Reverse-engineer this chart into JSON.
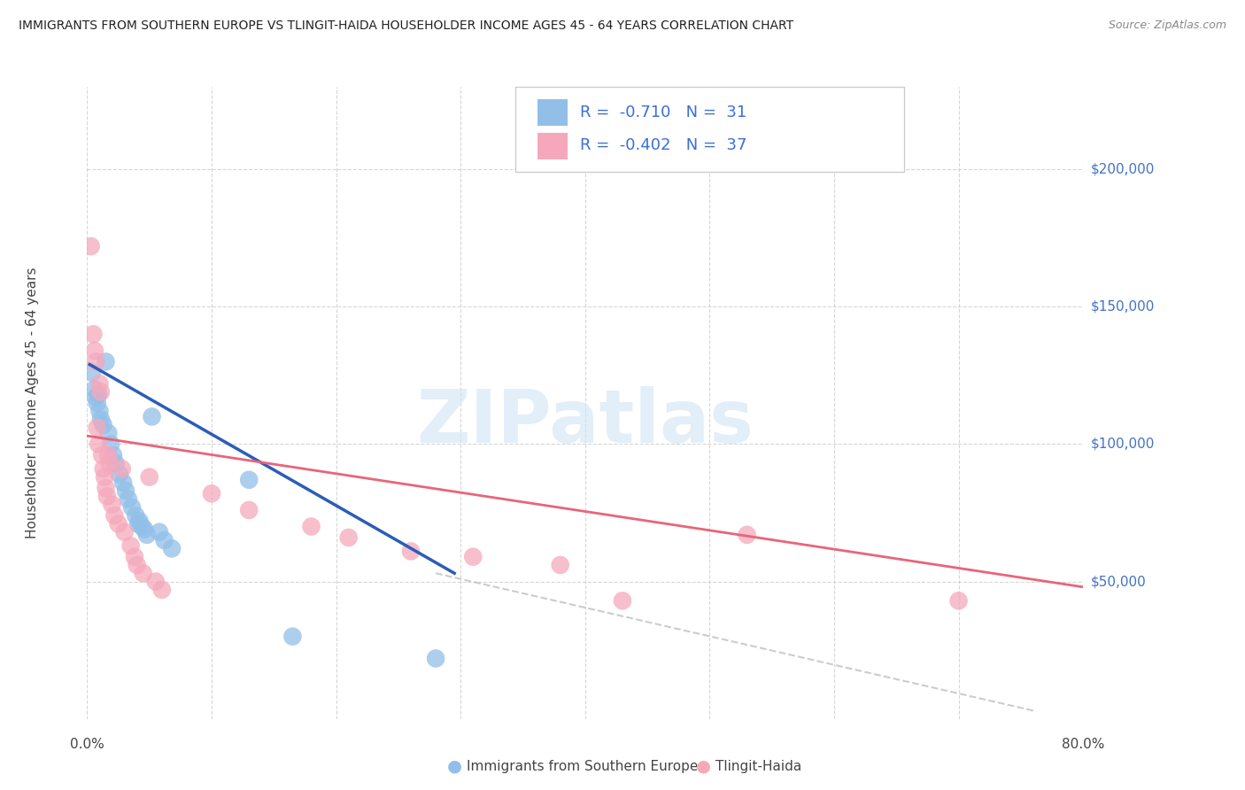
{
  "title": "IMMIGRANTS FROM SOUTHERN EUROPE VS TLINGIT-HAIDA HOUSEHOLDER INCOME AGES 45 - 64 YEARS CORRELATION CHART",
  "source": "Source: ZipAtlas.com",
  "ylabel": "Householder Income Ages 45 - 64 years",
  "ymin": 0,
  "ymax": 230000,
  "xmin": 0.0,
  "xmax": 0.8,
  "ytick_values": [
    50000,
    100000,
    150000,
    200000
  ],
  "ytick_labels": [
    "$50,000",
    "$100,000",
    "$150,000",
    "$200,000"
  ],
  "blue_color": "#92bfe8",
  "pink_color": "#f5a8bc",
  "blue_line_color": "#2b5db8",
  "pink_line_color": "#e8657a",
  "dashed_color": "#c0c0c0",
  "legend_text_color": "#3a6fd8",
  "watermark_color": "#d0e4f4",
  "blue_scatter": [
    [
      0.004,
      126000
    ],
    [
      0.006,
      120000
    ],
    [
      0.007,
      117000
    ],
    [
      0.008,
      115000
    ],
    [
      0.009,
      118000
    ],
    [
      0.01,
      112000
    ],
    [
      0.011,
      109000
    ],
    [
      0.013,
      107000
    ],
    [
      0.015,
      130000
    ],
    [
      0.017,
      104000
    ],
    [
      0.019,
      100000
    ],
    [
      0.021,
      96000
    ],
    [
      0.023,
      93000
    ],
    [
      0.026,
      89000
    ],
    [
      0.029,
      86000
    ],
    [
      0.031,
      83000
    ],
    [
      0.033,
      80000
    ],
    [
      0.036,
      77000
    ],
    [
      0.039,
      74000
    ],
    [
      0.041,
      71000
    ],
    [
      0.052,
      110000
    ],
    [
      0.058,
      68000
    ],
    [
      0.062,
      65000
    ],
    [
      0.068,
      62000
    ],
    [
      0.13,
      87000
    ],
    [
      0.042,
      72000
    ],
    [
      0.044,
      70000
    ],
    [
      0.046,
      69000
    ],
    [
      0.048,
      67000
    ],
    [
      0.165,
      30000
    ],
    [
      0.28,
      22000
    ]
  ],
  "pink_scatter": [
    [
      0.003,
      172000
    ],
    [
      0.005,
      140000
    ],
    [
      0.006,
      134000
    ],
    [
      0.007,
      130000
    ],
    [
      0.008,
      106000
    ],
    [
      0.009,
      100000
    ],
    [
      0.01,
      122000
    ],
    [
      0.011,
      119000
    ],
    [
      0.012,
      96000
    ],
    [
      0.013,
      91000
    ],
    [
      0.014,
      88000
    ],
    [
      0.015,
      84000
    ],
    [
      0.016,
      81000
    ],
    [
      0.017,
      96000
    ],
    [
      0.018,
      93000
    ],
    [
      0.02,
      78000
    ],
    [
      0.022,
      74000
    ],
    [
      0.025,
      71000
    ],
    [
      0.028,
      91000
    ],
    [
      0.03,
      68000
    ],
    [
      0.035,
      63000
    ],
    [
      0.038,
      59000
    ],
    [
      0.04,
      56000
    ],
    [
      0.045,
      53000
    ],
    [
      0.05,
      88000
    ],
    [
      0.055,
      50000
    ],
    [
      0.06,
      47000
    ],
    [
      0.1,
      82000
    ],
    [
      0.13,
      76000
    ],
    [
      0.18,
      70000
    ],
    [
      0.21,
      66000
    ],
    [
      0.26,
      61000
    ],
    [
      0.31,
      59000
    ],
    [
      0.38,
      56000
    ],
    [
      0.43,
      43000
    ],
    [
      0.53,
      67000
    ],
    [
      0.7,
      43000
    ]
  ],
  "blue_line": {
    "x": [
      0.002,
      0.295
    ],
    "y": [
      129000,
      53000
    ]
  },
  "pink_line": {
    "x": [
      0.0,
      0.8
    ],
    "y": [
      103000,
      48000
    ]
  },
  "dashed_line": {
    "x": [
      0.28,
      0.76
    ],
    "y": [
      53000,
      3000
    ]
  },
  "legend_r1": "-0.710",
  "legend_n1": "31",
  "legend_r2": "-0.402",
  "legend_n2": "37",
  "watermark": "ZIPatlas",
  "background_color": "#ffffff"
}
